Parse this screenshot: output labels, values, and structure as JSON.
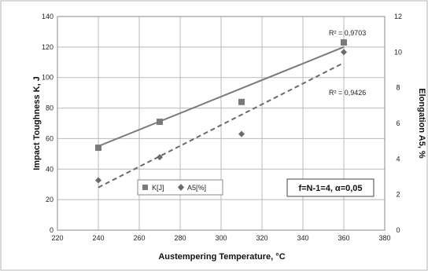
{
  "chart_data": {
    "type": "scatter",
    "title": "",
    "xlabel": "Austempering Temperature, ",
    "xlabel_unit": "°C",
    "ylabel_left": "Impact Toughness K, J",
    "ylabel_right": "Elongation A5, %",
    "xlim": [
      220,
      380
    ],
    "ylim_left": [
      0,
      140
    ],
    "ylim_right": [
      0,
      12
    ],
    "x_ticks": [
      "220",
      "240",
      "260",
      "280",
      "300",
      "320",
      "340",
      "360",
      "380"
    ],
    "y_left_ticks": [
      "0",
      "20",
      "40",
      "60",
      "80",
      "100",
      "120",
      "140"
    ],
    "y_right_ticks": [
      "0",
      "2",
      "4",
      "6",
      "8",
      "10",
      "12"
    ],
    "grid": true,
    "legend_position": "bottom-left-inside",
    "series": [
      {
        "name": "K[J]",
        "axis": "left",
        "marker": "square",
        "color": "#7a7a7a",
        "x": [
          240,
          270,
          310,
          360
        ],
        "y": [
          54,
          71,
          84,
          123
        ],
        "trend": "solid",
        "trend_y_at_xmin": 55,
        "trend_y_at_xmax": 120,
        "r2_label": "R² = 0,9703"
      },
      {
        "name": "A5[%]",
        "axis": "right",
        "marker": "diamond",
        "color": "#6a6a6a",
        "x": [
          240,
          270,
          310,
          360
        ],
        "y": [
          2.8,
          4.1,
          5.4,
          10.0
        ],
        "trend": "dashed",
        "trend_y_at_xmin": 2.4,
        "trend_y_at_xmax": 9.4,
        "r2_label": "R² = 0,9426"
      }
    ],
    "annotation": "f=N-1=4, α=0,05"
  }
}
